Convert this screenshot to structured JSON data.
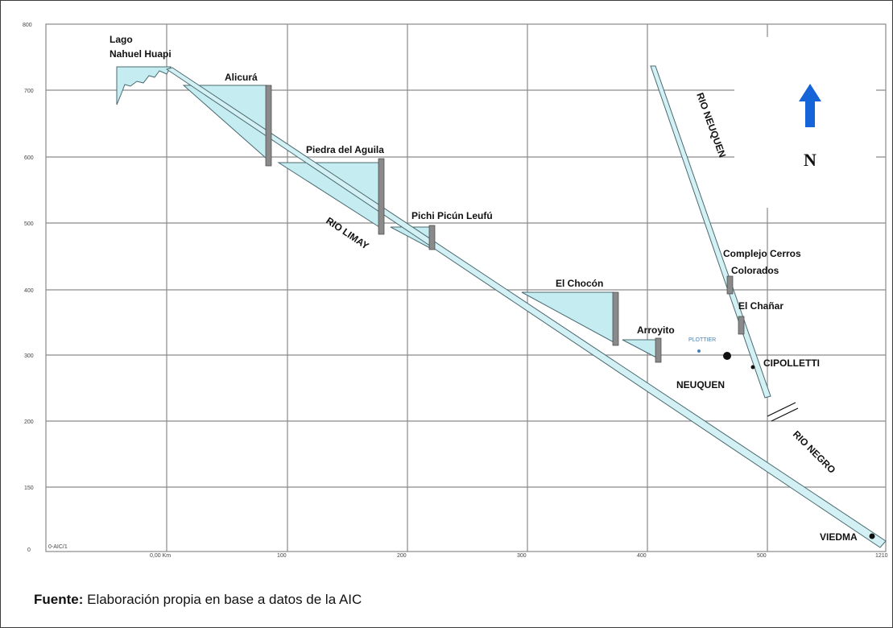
{
  "figure": {
    "y_ticks": [
      "800",
      "700",
      "600",
      "500",
      "400",
      "300",
      "200",
      "150",
      "0"
    ],
    "x_ticks": [
      "0,00 Km",
      "100",
      "200",
      "300",
      "400",
      "500",
      "1210"
    ],
    "corner_label": "0-AIC/1",
    "places": {
      "lago": "Lago",
      "nahuel": "Nahuel Huapi",
      "alicura": "Alicurá",
      "piedra": "Piedra del Aguila",
      "pichi": "Pichi Picún Leufú",
      "chocon": "El Chocón",
      "arroyito": "Arroyito",
      "complejo1": "Complejo Cerros",
      "complejo2": "Colorados",
      "chanar": "El Chañar",
      "plottier": "PLOTTIER",
      "cipolletti": "CIPOLLETTI",
      "neuquen_city": "NEUQUEN",
      "viedma": "VIEDMA"
    },
    "rivers": {
      "limay": "RIO LIMAY",
      "neuquen": "RIO NEUQUEN",
      "negro": "RIO NEGRO"
    },
    "north_label": "N",
    "colors": {
      "reservoir": "#c5ecf1",
      "dam": "#8a8a8a",
      "river_fill": "#d3f1f5",
      "north_arrow": "#1565d8",
      "grid": "#8a8a8a"
    }
  },
  "caption": {
    "source_label": "Fuente:",
    "source_text": " Elaboración propia en base a datos de la AIC"
  }
}
